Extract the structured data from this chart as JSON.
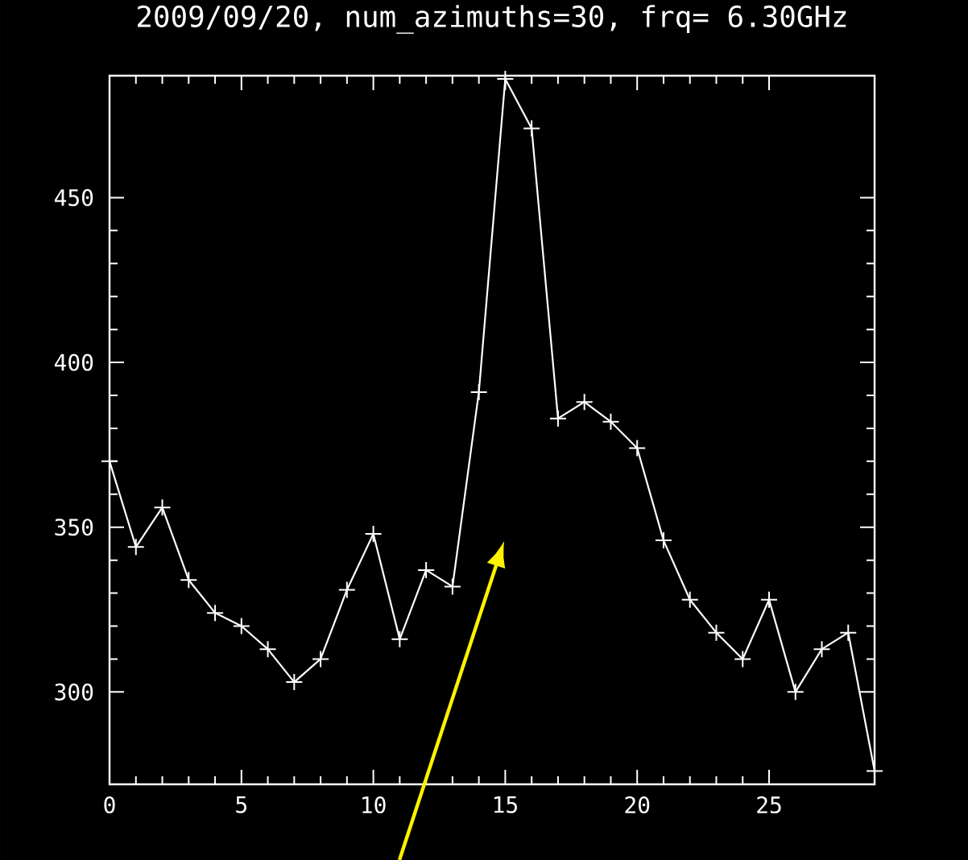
{
  "chart_data": {
    "type": "line",
    "title": "2009/09/20, num_azimuths=30, frq= 6.30GHz",
    "x": [
      0,
      1,
      2,
      3,
      4,
      5,
      6,
      7,
      8,
      9,
      10,
      11,
      12,
      13,
      14,
      15,
      16,
      17,
      18,
      19,
      20,
      21,
      22,
      23,
      24,
      25,
      26,
      27,
      28,
      29
    ],
    "values": [
      370,
      344,
      356,
      334,
      324,
      320,
      313,
      303,
      310,
      331,
      348,
      316,
      337,
      332,
      391,
      486,
      471,
      383,
      388,
      382,
      374,
      346,
      328,
      318,
      310,
      328,
      300,
      313,
      318,
      276
    ],
    "color": "#ffffff",
    "marker": "cross",
    "line_style": "solid",
    "xlim": [
      0,
      29
    ],
    "ylim": [
      272,
      487
    ],
    "xticks": [
      0,
      5,
      10,
      15,
      20,
      25
    ],
    "yticks": [
      300,
      350,
      400,
      450
    ],
    "grid": false
  }
}
